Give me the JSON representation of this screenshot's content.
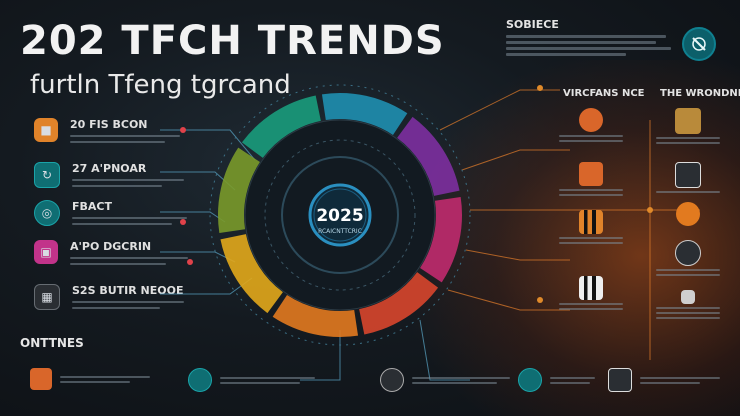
{
  "header": {
    "title": "202 TFCH TRENDS",
    "subtitle": "furtln Tfeng tgrcand"
  },
  "top_right": {
    "heading": "SOBIECE"
  },
  "left_items": [
    {
      "label": "20 FIS BCON",
      "accent": "#e0832a"
    },
    {
      "label": "27 A'PNOAR",
      "accent": "#1aa3a8"
    },
    {
      "label": "FBACT",
      "accent": "#1aa3a8"
    },
    {
      "label": "A'PO DGCRIN",
      "accent": "#c2338a"
    },
    {
      "label": "S2S BUTIR NEOOE",
      "accent": "#666c72"
    }
  ],
  "section_label": "ONTTNES",
  "center": {
    "year": "2025",
    "caption": "RCAICNTTCRIC"
  },
  "right_columns": {
    "col1": "VIRCFANS NCE",
    "col2": "THE WRONDNN"
  },
  "ring_colors": [
    "#1f8fb0",
    "#7d2fa0",
    "#c02a6e",
    "#d8462c",
    "#e27a1f",
    "#e2a81b",
    "#7a9a2a",
    "#1a9c7c"
  ]
}
